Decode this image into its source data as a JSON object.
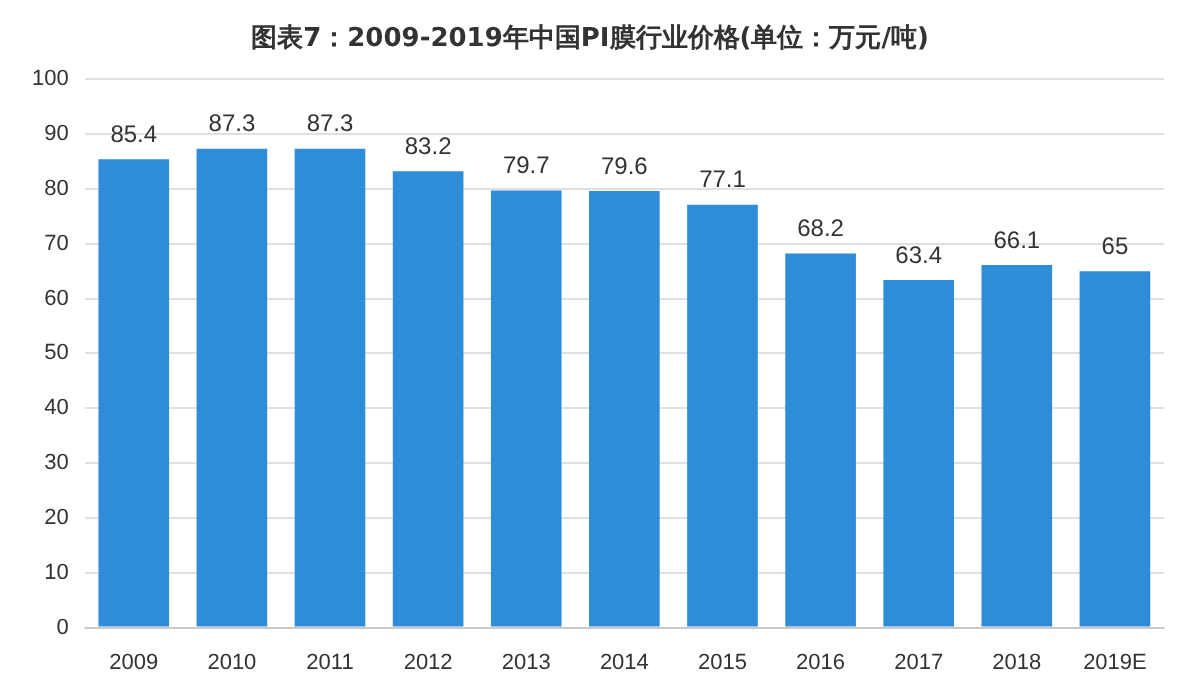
{
  "chart_data": {
    "type": "bar",
    "title": "图表7：2009-2019年中国PI膜行业价格(单位：万元/吨)",
    "categories": [
      "2009",
      "2010",
      "2011",
      "2012",
      "2013",
      "2014",
      "2015",
      "2016",
      "2017",
      "2018",
      "2019E"
    ],
    "values": [
      85.4,
      87.3,
      87.3,
      83.2,
      79.7,
      79.6,
      77.1,
      68.2,
      63.4,
      66.1,
      65
    ],
    "color": "#2e8cd9",
    "ylim": [
      0,
      100
    ],
    "yticks": [
      0,
      10,
      20,
      30,
      40,
      50,
      60,
      70,
      80,
      90,
      100
    ],
    "grid": "y",
    "data_labels": true
  }
}
